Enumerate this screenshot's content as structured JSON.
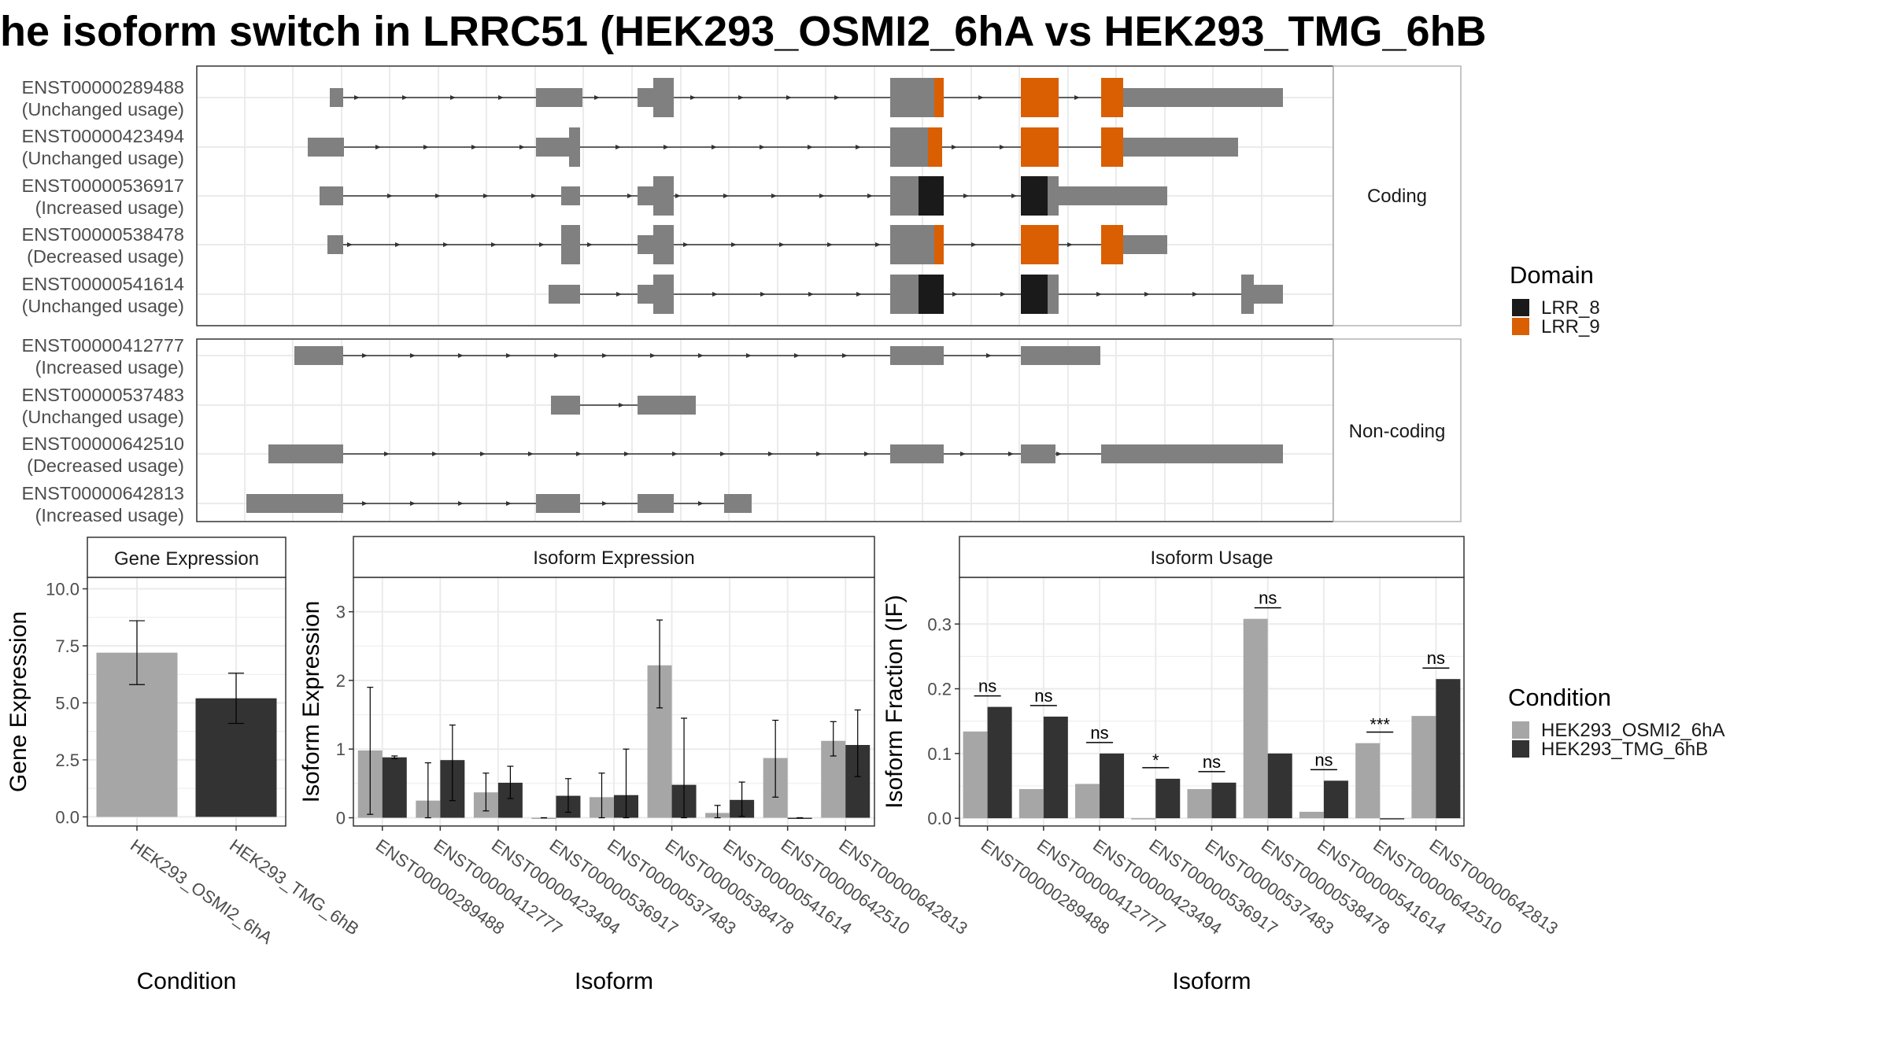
{
  "title": "he isoform switch in LRRC51 (HEK293_OSMI2_6hA vs HEK293_TMG_6hB",
  "colors": {
    "exon": "#808080",
    "LRR_8": "#1a1a1a",
    "LRR_9": "#d95f02",
    "cond_a": "#a6a6a6",
    "cond_b": "#333333",
    "grid": "#ebebeb",
    "strip_bg": "#ffffff"
  },
  "structure": {
    "panels": [
      {
        "label": "Coding",
        "transcripts": [
          {
            "id": "ENST00000289488",
            "usage": "(Unchanged usage)"
          },
          {
            "id": "ENST00000423494",
            "usage": "(Unchanged usage)"
          },
          {
            "id": "ENST00000536917",
            "usage": "(Increased usage)"
          },
          {
            "id": "ENST00000538478",
            "usage": "(Decreased usage)"
          },
          {
            "id": "ENST00000541614",
            "usage": "(Unchanged usage)"
          }
        ]
      },
      {
        "label": "Non-coding",
        "transcripts": [
          {
            "id": "ENST00000412777",
            "usage": "(Increased usage)"
          },
          {
            "id": "ENST00000537483",
            "usage": "(Unchanged usage)"
          },
          {
            "id": "ENST00000642510",
            "usage": "(Decreased usage)"
          },
          {
            "id": "ENST00000642813",
            "usage": "(Increased usage)"
          }
        ]
      }
    ],
    "domain_legend": {
      "title": "Domain",
      "items": [
        "LRR_8",
        "LRR_9"
      ]
    }
  },
  "condition_legend": {
    "title": "Condition",
    "items": [
      "HEK293_OSMI2_6hA",
      "HEK293_TMG_6hB"
    ]
  },
  "chart_data": [
    {
      "type": "bar",
      "title": "Gene Expression",
      "xlabel": "Condition",
      "ylabel": "Gene Expression",
      "categories": [
        "HEK293_OSMI2_6hA",
        "HEK293_TMG_6hB"
      ],
      "values": [
        7.2,
        5.2
      ],
      "error_low": [
        5.8,
        4.1
      ],
      "error_high": [
        8.6,
        6.3
      ],
      "yticks": [
        "0.0",
        "2.5",
        "5.0",
        "7.5",
        "10.0"
      ],
      "ylim": [
        -0.4,
        10.5
      ],
      "grid": true
    },
    {
      "type": "bar",
      "title": "Isoform Expression",
      "xlabel": "Isoform",
      "ylabel": "Isoform Expression",
      "categories": [
        "ENST00000289488",
        "ENST00000412777",
        "ENST00000423494",
        "ENST00000536917",
        "ENST00000537483",
        "ENST00000538478",
        "ENST00000541614",
        "ENST00000642510",
        "ENST00000642813"
      ],
      "series": [
        {
          "name": "HEK293_OSMI2_6hA",
          "values": [
            0.98,
            0.25,
            0.37,
            0.0,
            0.3,
            2.22,
            0.07,
            0.87,
            1.12
          ],
          "error_low": [
            0.05,
            0.0,
            0.1,
            0.0,
            0.0,
            1.6,
            0.0,
            0.3,
            0.9
          ],
          "error_high": [
            1.9,
            0.8,
            0.65,
            0.0,
            0.65,
            2.88,
            0.18,
            1.42,
            1.4
          ]
        },
        {
          "name": "HEK293_TMG_6hB",
          "values": [
            0.88,
            0.84,
            0.51,
            0.32,
            0.33,
            0.48,
            0.26,
            0.0,
            1.06
          ],
          "error_low": [
            0.86,
            0.25,
            0.28,
            0.08,
            0.0,
            0.0,
            0.02,
            0.0,
            0.6
          ],
          "error_high": [
            0.9,
            1.35,
            0.75,
            0.57,
            1.0,
            1.45,
            0.52,
            0.0,
            1.57
          ]
        }
      ],
      "yticks": [
        "0",
        "1",
        "2",
        "3"
      ],
      "ylim": [
        -0.12,
        3.5
      ],
      "grid": true
    },
    {
      "type": "bar",
      "title": "Isoform Usage",
      "xlabel": "Isoform",
      "ylabel": "Isoform Fraction (IF)",
      "categories": [
        "ENST00000289488",
        "ENST00000412777",
        "ENST00000423494",
        "ENST00000536917",
        "ENST00000537483",
        "ENST00000538478",
        "ENST00000541614",
        "ENST00000642510",
        "ENST00000642813"
      ],
      "series": [
        {
          "name": "HEK293_OSMI2_6hA",
          "values": [
            0.134,
            0.045,
            0.053,
            0.0,
            0.045,
            0.308,
            0.01,
            0.116,
            0.158
          ]
        },
        {
          "name": "HEK293_TMG_6hB",
          "values": [
            0.172,
            0.157,
            0.1,
            0.061,
            0.055,
            0.1,
            0.058,
            0.0,
            0.215
          ]
        }
      ],
      "significance": [
        "ns",
        "ns",
        "ns",
        "*",
        "ns",
        "ns",
        "ns",
        "***",
        "ns"
      ],
      "yticks": [
        "0.0",
        "0.1",
        "0.2",
        "0.3"
      ],
      "ylim": [
        -0.012,
        0.372
      ],
      "grid": true
    }
  ]
}
